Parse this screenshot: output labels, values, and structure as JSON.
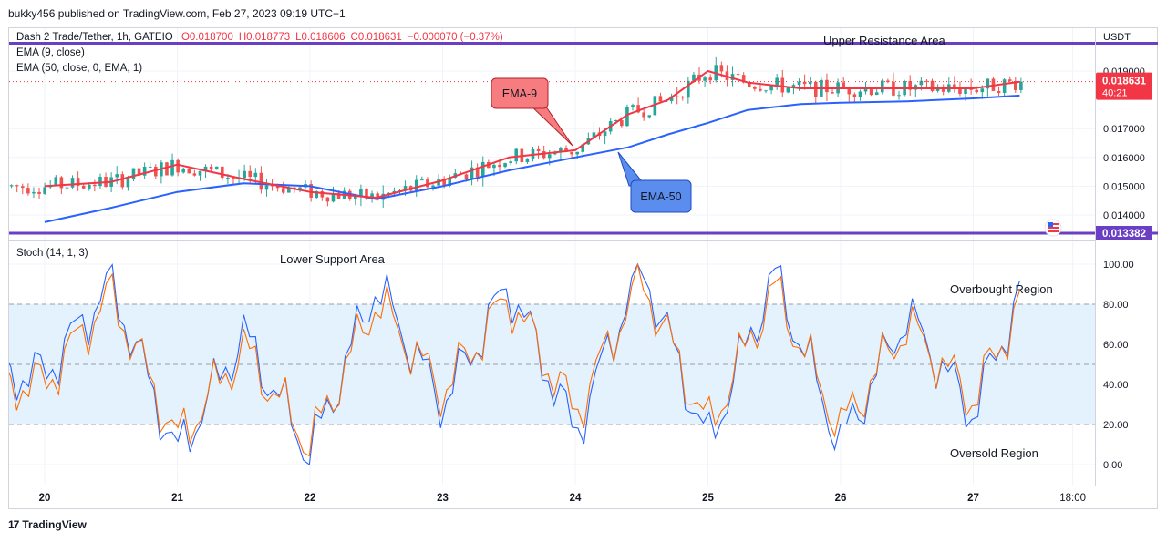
{
  "header": {
    "published": "bukky456 published on TradingView.com, Feb 27, 2023 09:19 UTC+1"
  },
  "legend": {
    "symbol": "Dash 2 Trade/Tether, 1h, GATEIO",
    "open": "O0.018700",
    "high": "H0.018773",
    "low": "L0.018606",
    "close": "C0.018631",
    "change": "−0.000070 (−0.37%)",
    "ema9": "EMA (9, close)",
    "ema50": "EMA (50, close, 0, EMA, 1)",
    "stoch": "Stoch (14, 1, 3)"
  },
  "price_axis": {
    "currency": "USDT",
    "ticks": [
      "0.019000",
      "0.017000",
      "0.016000",
      "0.015000",
      "0.014000"
    ],
    "current_price": "0.018631",
    "countdown": "40:21",
    "support_price": "0.013382",
    "current_color": "#f23645",
    "support_color": "#6a3fc3"
  },
  "stoch_axis": {
    "ticks": [
      "100.00",
      "80.00",
      "60.00",
      "40.00",
      "20.00",
      "0.00"
    ]
  },
  "time_axis": {
    "labels": [
      "20",
      "21",
      "22",
      "23",
      "24",
      "25",
      "26",
      "27",
      "18:00"
    ]
  },
  "annotations": {
    "upper_resistance": "Upper Resistance Area",
    "lower_support": "Lower Support Area",
    "ema9_callout": "EMA-9",
    "ema50_callout": "EMA-50",
    "overbought": "Overbought Region",
    "oversold": "Oversold Region"
  },
  "footer": {
    "brand": "TradingView"
  },
  "colors": {
    "up": "#26a69a",
    "down": "#ef5350",
    "ema9": "#f23645",
    "ema50": "#2962ff",
    "level": "#6a3fc3",
    "stoch_k": "#2962ff",
    "stoch_d": "#ff6d00",
    "ema9_callout": "#f77c80",
    "ema50_callout": "#5b8def",
    "band": "#e3f2fd"
  },
  "chart_data": [
    {
      "type": "line",
      "title": "Dash 2 Trade/Tether, 1h, GATEIO",
      "x": [
        "20",
        "20.5",
        "21",
        "21.5",
        "22",
        "22.5",
        "23",
        "23.5",
        "24",
        "24.4",
        "24.7",
        "25",
        "25.3",
        "25.7",
        "26",
        "26.5",
        "27",
        "27.35"
      ],
      "series": [
        {
          "name": "EMA (9, close)",
          "values": [
            0.015,
            0.01515,
            0.01575,
            0.01525,
            0.0148,
            0.0146,
            0.0152,
            0.016,
            0.01625,
            0.0175,
            0.018,
            0.019,
            0.0186,
            0.0184,
            0.0184,
            0.0184,
            0.0184,
            0.01863
          ]
        },
        {
          "name": "EMA (50, close, 0, EMA, 1)",
          "values": [
            0.01375,
            0.01425,
            0.0148,
            0.0151,
            0.015,
            0.01455,
            0.015,
            0.01555,
            0.016,
            0.01635,
            0.0168,
            0.0172,
            0.01765,
            0.01785,
            0.0179,
            0.01795,
            0.01805,
            0.01815
          ]
        }
      ],
      "ylim": [
        0.0134,
        0.0196
      ],
      "levels": {
        "upper_resistance": 0.0196,
        "lower_support": 0.013382
      }
    },
    {
      "type": "line",
      "title": "Stoch (14, 1, 3)",
      "x": [
        "20",
        "20.5",
        "21",
        "21.5",
        "22",
        "22.5",
        "23",
        "23.5",
        "24",
        "24.5",
        "25",
        "25.5",
        "26",
        "26.5",
        "27",
        "27.35"
      ],
      "series": [
        {
          "name": "%K",
          "values": [
            45,
            90,
            5,
            65,
            5,
            90,
            30,
            90,
            15,
            100,
            10,
            95,
            10,
            75,
            25,
            85
          ]
        },
        {
          "name": "%D",
          "values": [
            40,
            85,
            12,
            58,
            10,
            82,
            36,
            84,
            25,
            93,
            18,
            88,
            18,
            70,
            32,
            80
          ]
        }
      ],
      "ylim": [
        0,
        100
      ],
      "bands": {
        "overbought": 80,
        "middle": 50,
        "oversold": 20
      }
    }
  ]
}
